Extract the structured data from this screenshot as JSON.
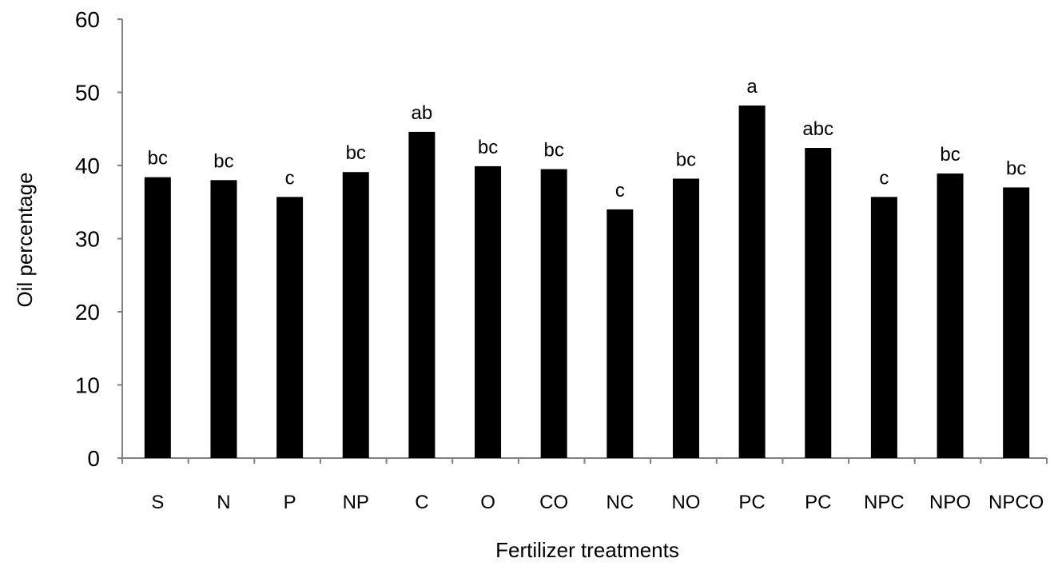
{
  "chart_data": {
    "type": "bar",
    "categories": [
      "S",
      "N",
      "P",
      "NP",
      "C",
      "O",
      "CO",
      "NC",
      "NO",
      "PC",
      "PC",
      "NPC",
      "NPO",
      "NPCO"
    ],
    "values": [
      38.4,
      38.0,
      35.7,
      39.1,
      44.6,
      39.9,
      39.5,
      34.0,
      38.2,
      48.2,
      42.4,
      35.7,
      38.9,
      37.0
    ],
    "bar_labels": [
      "bc",
      "bc",
      "c",
      "bc",
      "ab",
      "bc",
      "bc",
      "c",
      "bc",
      "a",
      "abc",
      "c",
      "bc",
      "bc"
    ],
    "xlabel": "Fertilizer treatments",
    "ylabel": "Oil percentage",
    "ylim": [
      0,
      60
    ],
    "yticks": [
      "0",
      "10",
      "20",
      "30",
      "40",
      "50",
      "60"
    ],
    "grid": false,
    "bar_color": "#000000"
  }
}
